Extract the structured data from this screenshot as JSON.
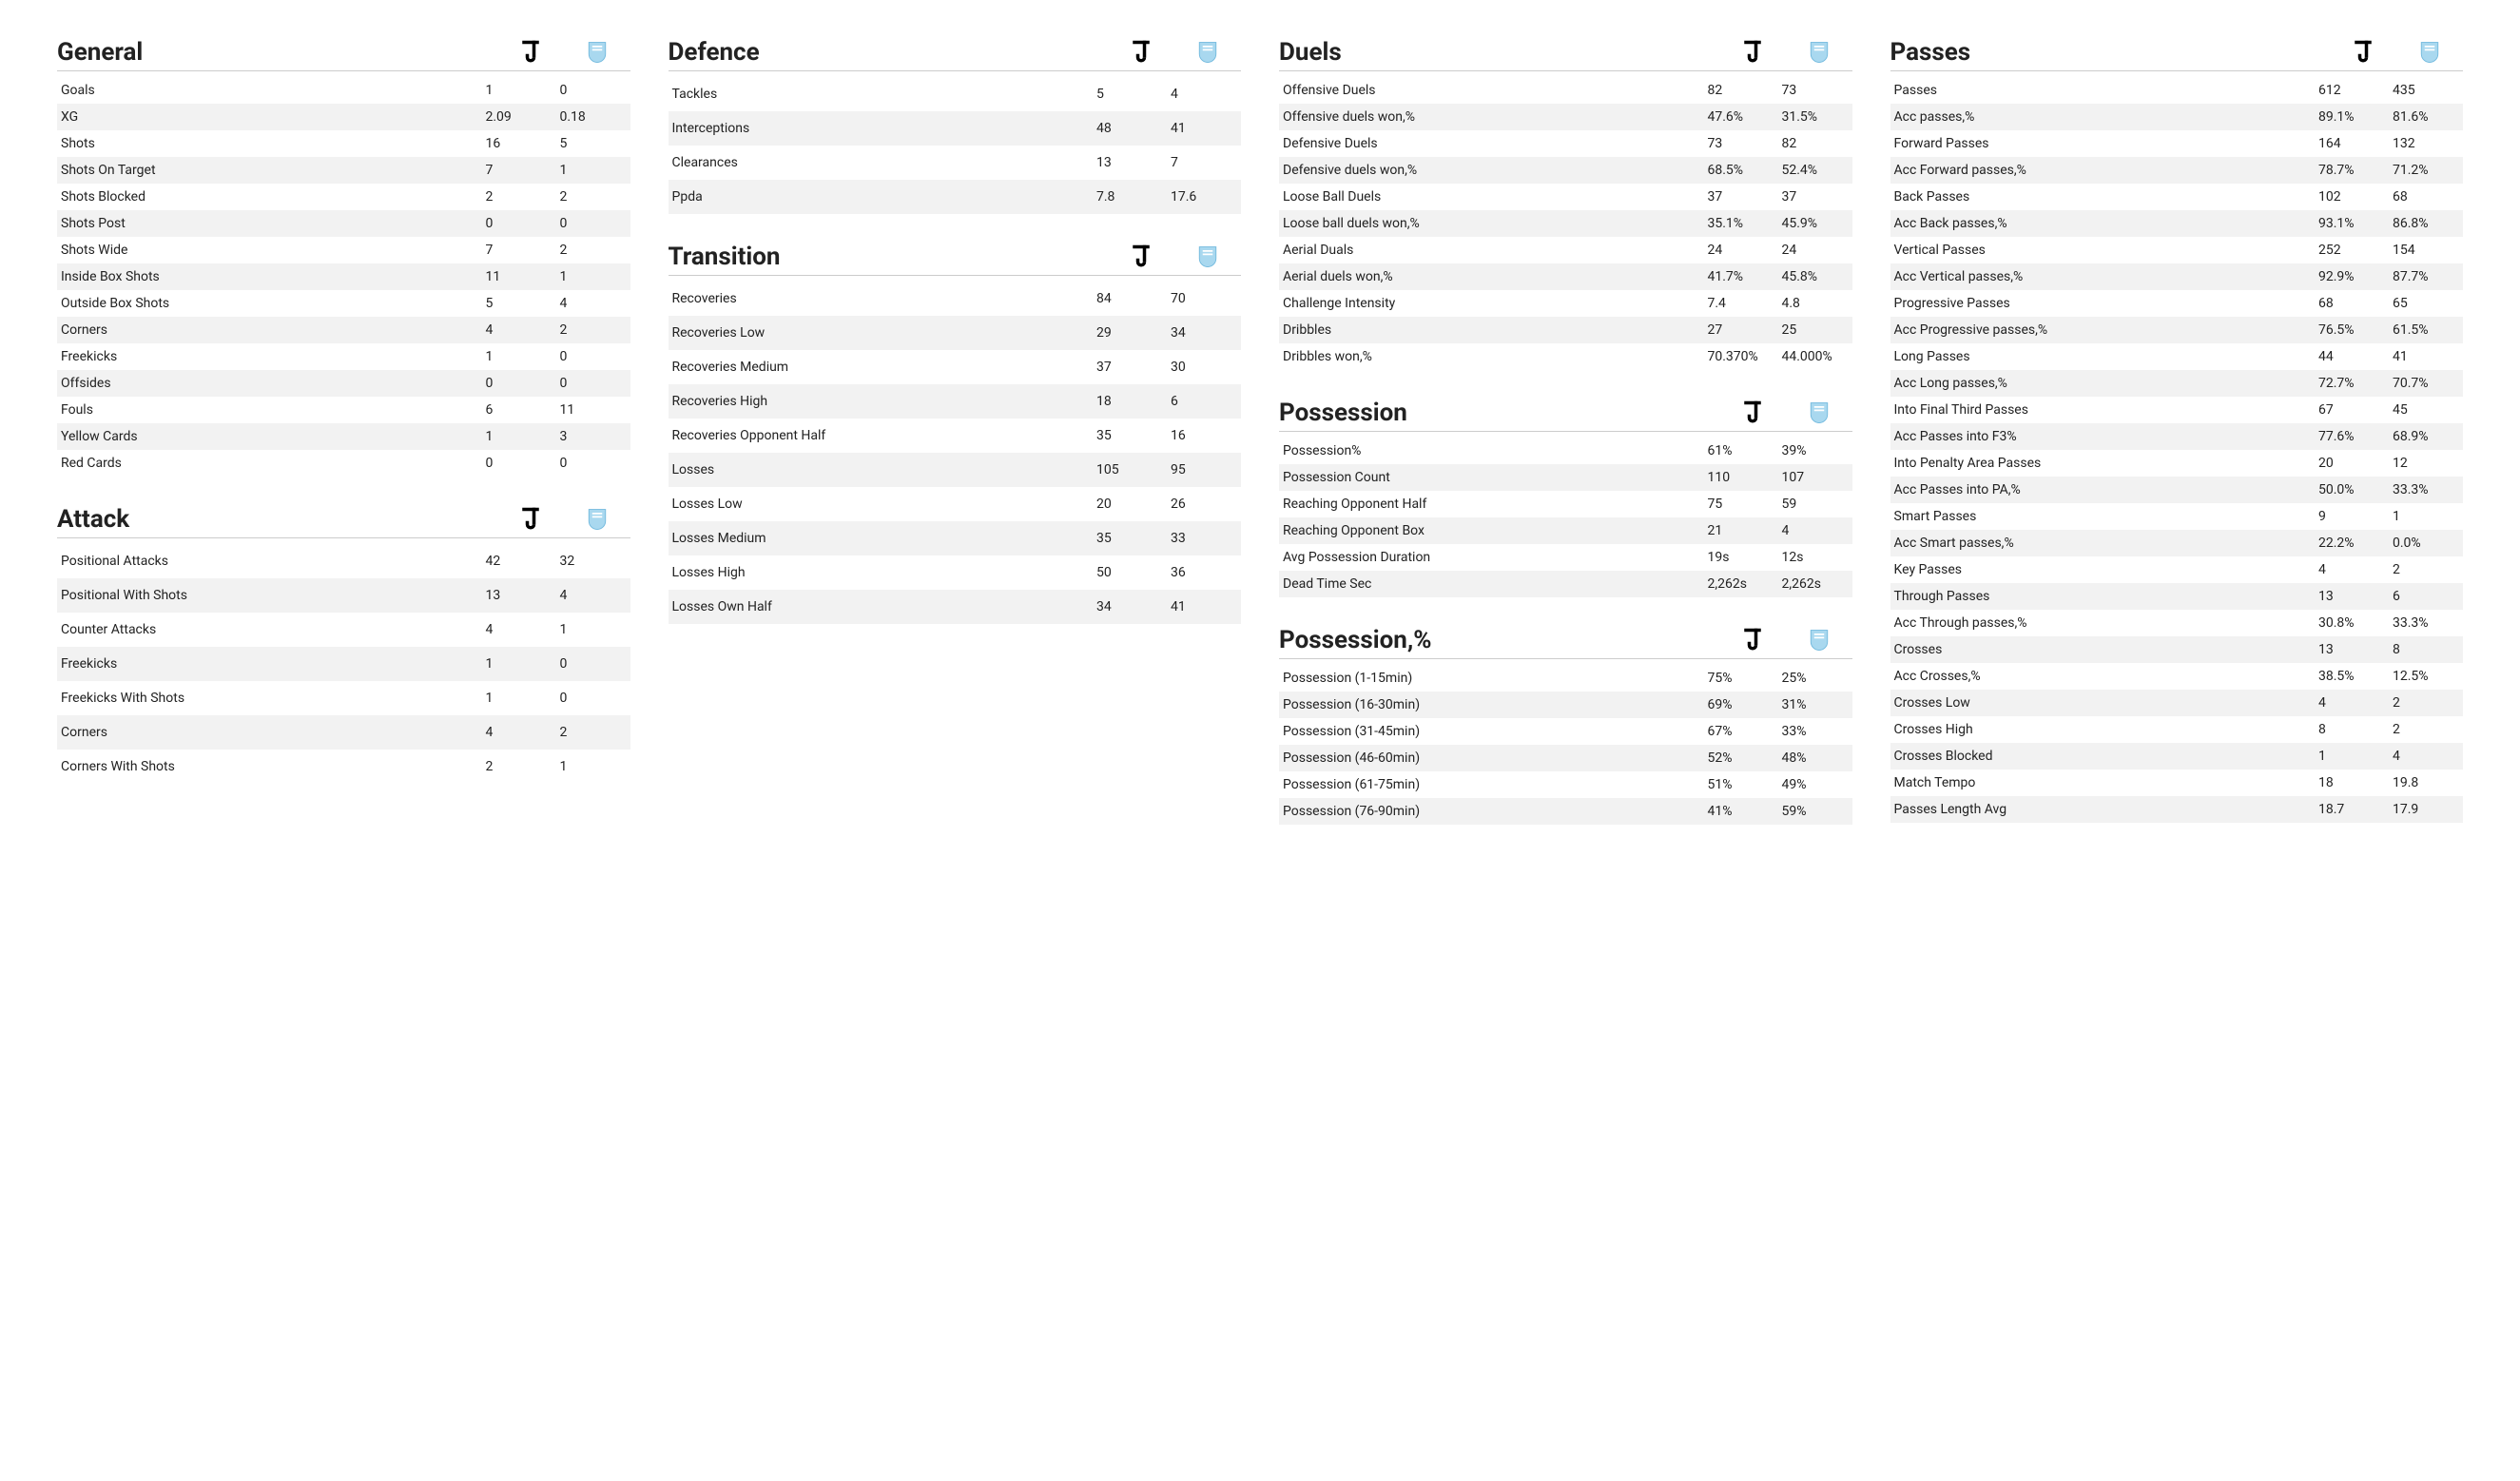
{
  "teams": {
    "a_name": "Juventus",
    "b_name": "Malmö"
  },
  "layout": {
    "row_bg_even": "#ffffff",
    "row_bg_odd": "#f2f2f2",
    "title_fontsize": 26,
    "row_fontsize": 14,
    "text_color": "#222222"
  },
  "sections": {
    "general": {
      "title": "General",
      "rows": [
        {
          "label": "Goals",
          "a": "1",
          "b": "0"
        },
        {
          "label": "XG",
          "a": "2.09",
          "b": "0.18"
        },
        {
          "label": "Shots",
          "a": "16",
          "b": "5"
        },
        {
          "label": "Shots On Target",
          "a": "7",
          "b": "1"
        },
        {
          "label": "Shots Blocked",
          "a": "2",
          "b": "2"
        },
        {
          "label": "Shots Post",
          "a": "0",
          "b": "0"
        },
        {
          "label": "Shots Wide",
          "a": "7",
          "b": "2"
        },
        {
          "label": "Inside Box Shots",
          "a": "11",
          "b": "1"
        },
        {
          "label": "Outside Box Shots",
          "a": "5",
          "b": "4"
        },
        {
          "label": "Corners",
          "a": "4",
          "b": "2"
        },
        {
          "label": "Freekicks",
          "a": "1",
          "b": "0"
        },
        {
          "label": "Offsides",
          "a": "0",
          "b": "0"
        },
        {
          "label": "Fouls",
          "a": "6",
          "b": "11"
        },
        {
          "label": "Yellow Cards",
          "a": "1",
          "b": "3"
        },
        {
          "label": "Red Cards",
          "a": "0",
          "b": "0"
        }
      ]
    },
    "attack": {
      "title": "Attack",
      "rows": [
        {
          "label": "Positional Attacks",
          "a": "42",
          "b": "32"
        },
        {
          "label": "Positional With Shots",
          "a": "13",
          "b": "4"
        },
        {
          "label": "Counter Attacks",
          "a": "4",
          "b": "1"
        },
        {
          "label": "Freekicks",
          "a": "1",
          "b": "0"
        },
        {
          "label": "Freekicks With Shots",
          "a": "1",
          "b": "0"
        },
        {
          "label": "Corners",
          "a": "4",
          "b": "2"
        },
        {
          "label": "Corners With Shots",
          "a": "2",
          "b": "1"
        }
      ]
    },
    "defence": {
      "title": "Defence",
      "rows": [
        {
          "label": "Tackles",
          "a": "5",
          "b": "4"
        },
        {
          "label": "Interceptions",
          "a": "48",
          "b": "41"
        },
        {
          "label": "Clearances",
          "a": "13",
          "b": "7"
        },
        {
          "label": "Ppda",
          "a": "7.8",
          "b": "17.6"
        }
      ]
    },
    "transition": {
      "title": "Transition",
      "rows": [
        {
          "label": "Recoveries",
          "a": "84",
          "b": "70"
        },
        {
          "label": "Recoveries Low",
          "a": "29",
          "b": "34"
        },
        {
          "label": "Recoveries Medium",
          "a": "37",
          "b": "30"
        },
        {
          "label": "Recoveries High",
          "a": "18",
          "b": "6"
        },
        {
          "label": "Recoveries Opponent Half",
          "a": "35",
          "b": "16"
        },
        {
          "label": "Losses",
          "a": "105",
          "b": "95"
        },
        {
          "label": "Losses Low",
          "a": "20",
          "b": "26"
        },
        {
          "label": "Losses Medium",
          "a": "35",
          "b": "33"
        },
        {
          "label": "Losses High",
          "a": "50",
          "b": "36"
        },
        {
          "label": "Losses Own Half",
          "a": "34",
          "b": "41"
        }
      ]
    },
    "duels": {
      "title": "Duels",
      "rows": [
        {
          "label": "Offensive Duels",
          "a": "82",
          "b": "73"
        },
        {
          "label": "Offensive duels won,%",
          "a": "47.6%",
          "b": "31.5%"
        },
        {
          "label": "Defensive Duels",
          "a": "73",
          "b": "82"
        },
        {
          "label": "Defensive duels won,%",
          "a": "68.5%",
          "b": "52.4%"
        },
        {
          "label": "Loose Ball Duels",
          "a": "37",
          "b": "37"
        },
        {
          "label": "Loose ball duels won,%",
          "a": "35.1%",
          "b": "45.9%"
        },
        {
          "label": "Aerial Duals",
          "a": "24",
          "b": "24"
        },
        {
          "label": "Aerial duels won,%",
          "a": "41.7%",
          "b": "45.8%"
        },
        {
          "label": "Challenge Intensity",
          "a": "7.4",
          "b": "4.8"
        },
        {
          "label": "Dribbles",
          "a": "27",
          "b": "25"
        },
        {
          "label": "Dribbles won,%",
          "a": "70.370%",
          "b": "44.000%"
        }
      ]
    },
    "possession": {
      "title": "Possession",
      "rows": [
        {
          "label": "Possession%",
          "a": "61%",
          "b": "39%"
        },
        {
          "label": "Possession Count",
          "a": "110",
          "b": "107"
        },
        {
          "label": "Reaching Opponent Half",
          "a": "75",
          "b": "59"
        },
        {
          "label": "Reaching Opponent Box",
          "a": "21",
          "b": "4"
        },
        {
          "label": "Avg Possession Duration",
          "a": "19s",
          "b": "12s"
        },
        {
          "label": "Dead Time Sec",
          "a": "2,262s",
          "b": "2,262s"
        }
      ]
    },
    "possession_pct": {
      "title": "Possession,%",
      "rows": [
        {
          "label": "Possession (1-15min)",
          "a": "75%",
          "b": "25%"
        },
        {
          "label": "Possession (16-30min)",
          "a": "69%",
          "b": "31%"
        },
        {
          "label": "Possession (31-45min)",
          "a": "67%",
          "b": "33%"
        },
        {
          "label": "Possession (46-60min)",
          "a": "52%",
          "b": "48%"
        },
        {
          "label": "Possession (61-75min)",
          "a": "51%",
          "b": "49%"
        },
        {
          "label": "Possession (76-90min)",
          "a": "41%",
          "b": "59%"
        }
      ]
    },
    "passes": {
      "title": "Passes",
      "rows": [
        {
          "label": "Passes",
          "a": "612",
          "b": "435"
        },
        {
          "label": "Acc passes,%",
          "a": "89.1%",
          "b": "81.6%"
        },
        {
          "label": "Forward Passes",
          "a": "164",
          "b": "132"
        },
        {
          "label": "Acc Forward passes,%",
          "a": "78.7%",
          "b": "71.2%"
        },
        {
          "label": "Back Passes",
          "a": "102",
          "b": "68"
        },
        {
          "label": "Acc Back passes,%",
          "a": "93.1%",
          "b": "86.8%"
        },
        {
          "label": "Vertical Passes",
          "a": "252",
          "b": "154"
        },
        {
          "label": "Acc Vertical passes,%",
          "a": "92.9%",
          "b": "87.7%"
        },
        {
          "label": "Progressive Passes",
          "a": "68",
          "b": "65"
        },
        {
          "label": "Acc Progressive passes,%",
          "a": "76.5%",
          "b": "61.5%"
        },
        {
          "label": "Long Passes",
          "a": "44",
          "b": "41"
        },
        {
          "label": "Acc Long passes,%",
          "a": "72.7%",
          "b": "70.7%"
        },
        {
          "label": "Into Final Third Passes",
          "a": "67",
          "b": "45"
        },
        {
          "label": "Acc Passes into F3%",
          "a": "77.6%",
          "b": "68.9%"
        },
        {
          "label": "Into Penalty Area Passes",
          "a": "20",
          "b": "12"
        },
        {
          "label": "Acc Passes into PA,%",
          "a": "50.0%",
          "b": "33.3%"
        },
        {
          "label": "Smart Passes",
          "a": "9",
          "b": "1"
        },
        {
          "label": "Acc Smart passes,%",
          "a": "22.2%",
          "b": "0.0%"
        },
        {
          "label": "Key Passes",
          "a": "4",
          "b": "2"
        },
        {
          "label": "Through Passes",
          "a": "13",
          "b": "6"
        },
        {
          "label": "Acc Through passes,%",
          "a": "30.8%",
          "b": "33.3%"
        },
        {
          "label": "Crosses",
          "a": "13",
          "b": "8"
        },
        {
          "label": "Acc Crosses,%",
          "a": "38.5%",
          "b": "12.5%"
        },
        {
          "label": "Crosses Low",
          "a": "4",
          "b": "2"
        },
        {
          "label": "Crosses High",
          "a": "8",
          "b": "2"
        },
        {
          "label": "Crosses Blocked",
          "a": "1",
          "b": "4"
        },
        {
          "label": "Match Tempo",
          "a": "18",
          "b": "19.8"
        },
        {
          "label": "Passes Length Avg",
          "a": "18.7",
          "b": "17.9"
        }
      ]
    }
  },
  "column_layout": [
    {
      "sections": [
        "general",
        "attack"
      ],
      "tall": [
        false,
        true
      ]
    },
    {
      "sections": [
        "defence",
        "transition"
      ],
      "tall": [
        true,
        true
      ]
    },
    {
      "sections": [
        "duels",
        "possession",
        "possession_pct"
      ],
      "tall": [
        false,
        false,
        false
      ]
    },
    {
      "sections": [
        "passes"
      ],
      "tall": [
        false
      ]
    }
  ]
}
